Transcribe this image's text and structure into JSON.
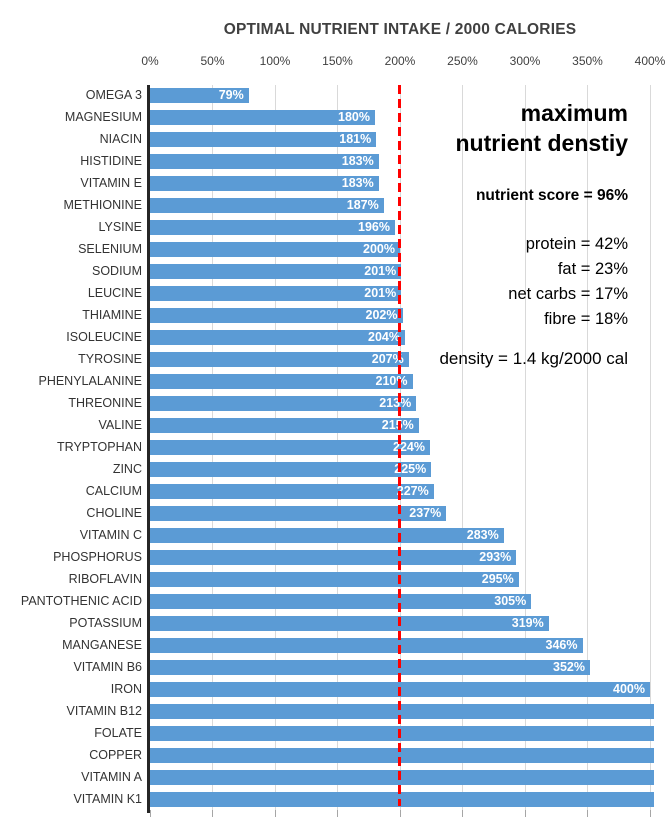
{
  "chart_data": {
    "type": "bar",
    "orientation": "horizontal",
    "title": "OPTIMAL NUTRIENT INTAKE / 2000 CALORIES",
    "xlabel": "",
    "ylabel": "",
    "xlim": [
      0,
      400
    ],
    "x_tick_labels": [
      "0%",
      "50%",
      "100%",
      "150%",
      "200%",
      "250%",
      "300%",
      "350%",
      "400%"
    ],
    "grid": "vertical-gridlines-only",
    "legend": "none",
    "reference_line": {
      "value_pct": 200,
      "color": "#FF0000",
      "style": "dashed"
    },
    "bars": [
      {
        "label": "OMEGA 3",
        "value_pct": 79,
        "value_label": "79%",
        "offscale": false
      },
      {
        "label": "MAGNESIUM",
        "value_pct": 180,
        "value_label": "180%",
        "offscale": false
      },
      {
        "label": "NIACIN",
        "value_pct": 181,
        "value_label": "181%",
        "offscale": false
      },
      {
        "label": "HISTIDINE",
        "value_pct": 183,
        "value_label": "183%",
        "offscale": false
      },
      {
        "label": "VITAMIN E",
        "value_pct": 183,
        "value_label": "183%",
        "offscale": false
      },
      {
        "label": "METHIONINE",
        "value_pct": 187,
        "value_label": "187%",
        "offscale": false
      },
      {
        "label": "LYSINE",
        "value_pct": 196,
        "value_label": "196%",
        "offscale": false
      },
      {
        "label": "SELENIUM",
        "value_pct": 200,
        "value_label": "200%",
        "offscale": false
      },
      {
        "label": "SODIUM",
        "value_pct": 201,
        "value_label": "201%",
        "offscale": false
      },
      {
        "label": "LEUCINE",
        "value_pct": 201,
        "value_label": "201%",
        "offscale": false
      },
      {
        "label": "THIAMINE",
        "value_pct": 202,
        "value_label": "202%",
        "offscale": false
      },
      {
        "label": "ISOLEUCINE",
        "value_pct": 204,
        "value_label": "204%",
        "offscale": false
      },
      {
        "label": "TYROSINE",
        "value_pct": 207,
        "value_label": "207%",
        "offscale": false
      },
      {
        "label": "PHENYLALANINE",
        "value_pct": 210,
        "value_label": "210%",
        "offscale": false
      },
      {
        "label": "THREONINE",
        "value_pct": 213,
        "value_label": "213%",
        "offscale": false
      },
      {
        "label": "VALINE",
        "value_pct": 215,
        "value_label": "215%",
        "offscale": false
      },
      {
        "label": "TRYPTOPHAN",
        "value_pct": 224,
        "value_label": "224%",
        "offscale": false
      },
      {
        "label": "ZINC",
        "value_pct": 225,
        "value_label": "225%",
        "offscale": false
      },
      {
        "label": "CALCIUM",
        "value_pct": 227,
        "value_label": "227%",
        "offscale": false
      },
      {
        "label": "CHOLINE",
        "value_pct": 237,
        "value_label": "237%",
        "offscale": false
      },
      {
        "label": "VITAMIN C",
        "value_pct": 283,
        "value_label": "283%",
        "offscale": false
      },
      {
        "label": "PHOSPHORUS",
        "value_pct": 293,
        "value_label": "293%",
        "offscale": false
      },
      {
        "label": "RIBOFLAVIN",
        "value_pct": 295,
        "value_label": "295%",
        "offscale": false
      },
      {
        "label": "PANTOTHENIC ACID",
        "value_pct": 305,
        "value_label": "305%",
        "offscale": false
      },
      {
        "label": "POTASSIUM",
        "value_pct": 319,
        "value_label": "319%",
        "offscale": false
      },
      {
        "label": "MANGANESE",
        "value_pct": 346,
        "value_label": "346%",
        "offscale": false
      },
      {
        "label": "VITAMIN B6",
        "value_pct": 352,
        "value_label": "352%",
        "offscale": false
      },
      {
        "label": "IRON",
        "value_pct": 400,
        "value_label": "400%",
        "offscale": false
      },
      {
        "label": "VITAMIN B12",
        "value_pct": null,
        "value_label": "",
        "offscale": true
      },
      {
        "label": "FOLATE",
        "value_pct": null,
        "value_label": "",
        "offscale": true
      },
      {
        "label": "COPPER",
        "value_pct": null,
        "value_label": "",
        "offscale": true
      },
      {
        "label": "VITAMIN A",
        "value_pct": null,
        "value_label": "",
        "offscale": true
      },
      {
        "label": "VITAMIN K1",
        "value_pct": null,
        "value_label": "",
        "offscale": true
      }
    ]
  },
  "annotations": {
    "heading_line1": "maximum",
    "heading_line2": "nutrient denstiy",
    "score": "nutrient score = 96%",
    "macros": [
      "protein = 42%",
      "fat = 23%",
      "net carbs = 17%",
      "fibre = 18%"
    ],
    "density": "density = 1.4 kg/2000 cal"
  },
  "colors": {
    "bar": "#5B9BD5",
    "reference_line": "#FF0000",
    "gridline": "#D9D9D9",
    "axis_line": "#262626",
    "title_text": "#404040",
    "value_label_text": "#FFFFFF",
    "annotation_text": "#000000"
  }
}
